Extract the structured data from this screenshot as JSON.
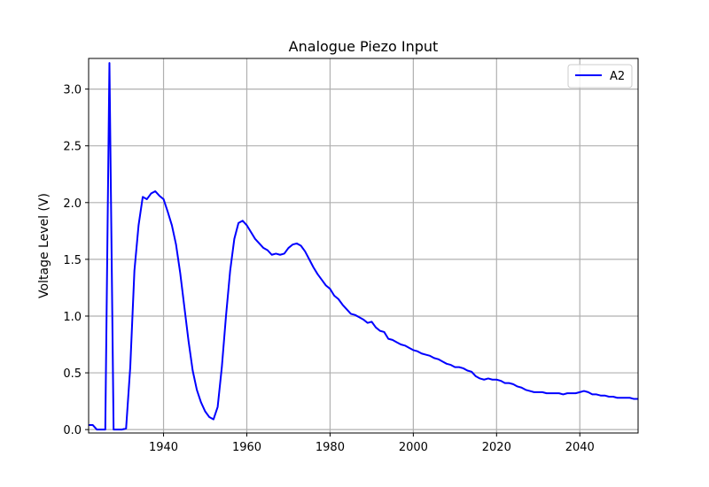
{
  "chart_data": {
    "type": "line",
    "title": "Analogue Piezo Input",
    "xlabel": "",
    "ylabel": "Voltage Level (V)",
    "xlim": [
      1922,
      2054
    ],
    "ylim": [
      -0.03,
      3.27
    ],
    "xticks": [
      1940,
      1960,
      1980,
      2000,
      2020,
      2040
    ],
    "xtick_labels": [
      "1940",
      "1960",
      "1980",
      "2000",
      "2020",
      "2040"
    ],
    "yticks": [
      0.0,
      0.5,
      1.0,
      1.5,
      2.0,
      2.5,
      3.0
    ],
    "ytick_labels": [
      "0.0",
      "0.5",
      "1.0",
      "1.5",
      "2.0",
      "2.5",
      "3.0"
    ],
    "grid": true,
    "legend_position": "upper right",
    "series": [
      {
        "name": "A2",
        "color": "#0000ff",
        "x": [
          1922,
          1923,
          1924,
          1925,
          1926,
          1927,
          1928,
          1929,
          1930,
          1931,
          1932,
          1933,
          1934,
          1935,
          1936,
          1937,
          1938,
          1939,
          1940,
          1941,
          1942,
          1943,
          1944,
          1945,
          1946,
          1947,
          1948,
          1949,
          1950,
          1951,
          1952,
          1953,
          1954,
          1955,
          1956,
          1957,
          1958,
          1959,
          1960,
          1961,
          1962,
          1963,
          1964,
          1965,
          1966,
          1967,
          1968,
          1969,
          1970,
          1971,
          1972,
          1973,
          1974,
          1975,
          1976,
          1977,
          1978,
          1979,
          1980,
          1981,
          1982,
          1983,
          1984,
          1985,
          1986,
          1987,
          1988,
          1989,
          1990,
          1991,
          1992,
          1993,
          1994,
          1995,
          1996,
          1997,
          1998,
          1999,
          2000,
          2001,
          2002,
          2003,
          2004,
          2005,
          2006,
          2007,
          2008,
          2009,
          2010,
          2011,
          2012,
          2013,
          2014,
          2015,
          2016,
          2017,
          2018,
          2019,
          2020,
          2021,
          2022,
          2023,
          2024,
          2025,
          2026,
          2027,
          2028,
          2029,
          2030,
          2031,
          2032,
          2033,
          2034,
          2035,
          2036,
          2037,
          2038,
          2039,
          2040,
          2041,
          2042,
          2043,
          2044,
          2045,
          2046,
          2047,
          2048,
          2049,
          2050,
          2051,
          2052,
          2053,
          2054
        ],
        "y": [
          0.04,
          0.04,
          0.0,
          0.0,
          0.0,
          3.23,
          0.0,
          0.0,
          0.0,
          0.01,
          0.55,
          1.4,
          1.8,
          2.05,
          2.03,
          2.08,
          2.1,
          2.06,
          2.03,
          1.92,
          1.8,
          1.63,
          1.38,
          1.08,
          0.78,
          0.52,
          0.35,
          0.24,
          0.16,
          0.11,
          0.09,
          0.2,
          0.55,
          1.0,
          1.4,
          1.68,
          1.82,
          1.84,
          1.8,
          1.74,
          1.68,
          1.64,
          1.6,
          1.58,
          1.54,
          1.55,
          1.54,
          1.55,
          1.6,
          1.63,
          1.64,
          1.62,
          1.57,
          1.5,
          1.43,
          1.37,
          1.32,
          1.27,
          1.24,
          1.18,
          1.15,
          1.1,
          1.06,
          1.02,
          1.01,
          0.99,
          0.97,
          0.94,
          0.95,
          0.9,
          0.87,
          0.86,
          0.8,
          0.79,
          0.77,
          0.75,
          0.74,
          0.72,
          0.7,
          0.69,
          0.67,
          0.66,
          0.65,
          0.63,
          0.62,
          0.6,
          0.58,
          0.57,
          0.55,
          0.55,
          0.54,
          0.52,
          0.51,
          0.47,
          0.45,
          0.44,
          0.45,
          0.44,
          0.44,
          0.43,
          0.41,
          0.41,
          0.4,
          0.38,
          0.37,
          0.35,
          0.34,
          0.33,
          0.33,
          0.33,
          0.32,
          0.32,
          0.32,
          0.32,
          0.31,
          0.32,
          0.32,
          0.32,
          0.33,
          0.34,
          0.33,
          0.31,
          0.31,
          0.3,
          0.3,
          0.29,
          0.29,
          0.28,
          0.28,
          0.28,
          0.28,
          0.27,
          0.27
        ]
      }
    ]
  }
}
